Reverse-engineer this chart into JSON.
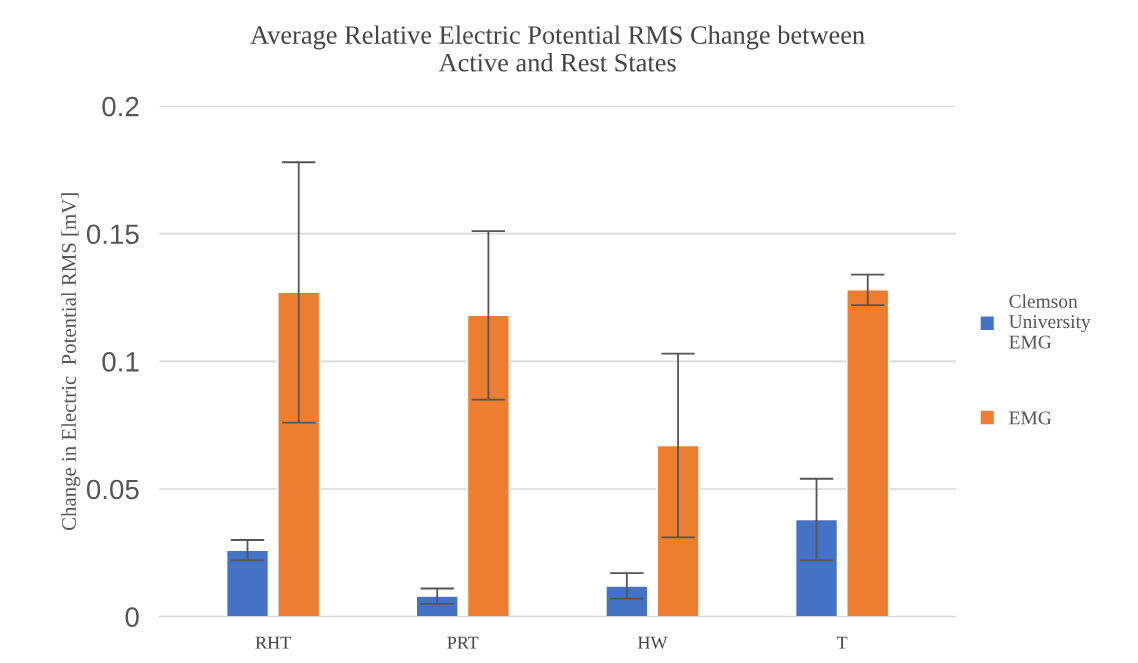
{
  "chart_data": {
    "type": "bar",
    "title": "Average Relative Electric Potential RMS Change between\nActive and Rest States",
    "ylabel": "Change in Electric  Potential RMS [mV]",
    "categories": [
      "RHT",
      "PRT",
      "HW",
      "T"
    ],
    "series": [
      {
        "name": "Clemson\nUniversity\nEMG",
        "color": "#4472c4",
        "values": [
          0.026,
          0.008,
          0.012,
          0.038
        ],
        "errors": [
          0.004,
          0.003,
          0.005,
          0.016
        ]
      },
      {
        "name": "EMG",
        "color": "#ed7d31",
        "values": [
          0.127,
          0.118,
          0.067,
          0.128
        ],
        "errors": [
          0.051,
          0.033,
          0.036,
          0.006
        ]
      }
    ],
    "ylim": [
      0,
      0.2
    ],
    "yticks": [
      0,
      0.05,
      0.1,
      0.15,
      0.2
    ],
    "grid": "y",
    "legend": "right"
  }
}
